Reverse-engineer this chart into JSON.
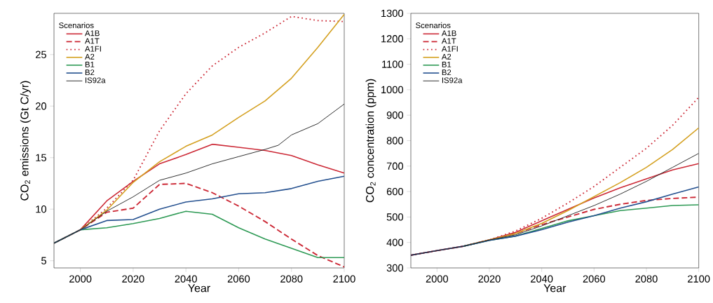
{
  "chart_data": [
    {
      "type": "line",
      "xlabel": "Year",
      "ylabel": "CO$_{2}$ emissions (Gt C/yr)",
      "legend_title": "Scenarios",
      "legend": "top left",
      "xlim": [
        1990,
        2100
      ],
      "ylim": [
        4.3,
        29
      ],
      "xticks": [
        2000,
        2020,
        2040,
        2060,
        2080,
        2100
      ],
      "yticks": [
        5,
        10,
        15,
        20,
        25
      ],
      "x": [
        1990,
        2000,
        2010,
        2020,
        2030,
        2040,
        2050,
        2060,
        2070,
        2080,
        2090,
        2100
      ],
      "series": [
        {
          "name": "A1B",
          "color": "#cc2936",
          "line_style": "solid",
          "values": [
            6.7,
            8.0,
            10.8,
            12.7,
            14.4,
            15.3,
            16.3,
            16.0,
            15.7,
            15.2,
            14.3,
            13.5
          ]
        },
        {
          "name": "A1T",
          "color": "#cc2936",
          "line_style": "dashed",
          "values": [
            6.7,
            8.0,
            9.7,
            10.1,
            12.4,
            12.5,
            11.6,
            10.3,
            8.8,
            7.1,
            5.5,
            4.4
          ]
        },
        {
          "name": "A1FI",
          "color": "#cc2936",
          "line_style": "dotted",
          "values": [
            6.7,
            8.0,
            10.1,
            12.8,
            17.6,
            21.2,
            23.9,
            25.7,
            27.1,
            28.7,
            28.3,
            28.2
          ]
        },
        {
          "name": "A2",
          "color": "#d4a020",
          "line_style": "solid",
          "values": [
            6.7,
            8.0,
            9.9,
            12.6,
            14.6,
            16.1,
            17.2,
            18.9,
            20.5,
            22.7,
            25.7,
            28.9
          ]
        },
        {
          "name": "B1",
          "color": "#2e9a55",
          "line_style": "solid",
          "values": [
            6.7,
            8.0,
            8.2,
            8.6,
            9.1,
            9.8,
            9.5,
            8.2,
            7.1,
            6.2,
            5.3,
            5.3
          ]
        },
        {
          "name": "B2",
          "color": "#24508f",
          "line_style": "solid",
          "values": [
            6.7,
            8.0,
            8.9,
            9.0,
            10.0,
            10.7,
            11.0,
            11.5,
            11.6,
            12.0,
            12.7,
            13.2
          ]
        },
        {
          "name": "IS92a",
          "color": "#222222",
          "line_style": "solid",
          "x": [
            1990,
            2000,
            2010,
            2020,
            2030,
            2040,
            2050,
            2060,
            2070,
            2075,
            2080,
            2090,
            2100
          ],
          "values": [
            6.7,
            8.0,
            9.8,
            11.2,
            12.8,
            13.5,
            14.4,
            15.1,
            15.8,
            16.2,
            17.2,
            18.3,
            20.2
          ]
        }
      ]
    },
    {
      "type": "line",
      "xlabel": "Year",
      "ylabel": "CO$_{2}$ concentration (ppm)",
      "legend_title": "Scenarios",
      "legend": "top left",
      "xlim": [
        1990,
        2100
      ],
      "ylim": [
        300,
        1300
      ],
      "xticks": [
        2000,
        2020,
        2040,
        2060,
        2080,
        2100
      ],
      "yticks": [
        300,
        400,
        500,
        600,
        700,
        800,
        900,
        1000,
        1100,
        1200,
        1300
      ],
      "x": [
        1990,
        2000,
        2010,
        2020,
        2030,
        2040,
        2050,
        2060,
        2070,
        2080,
        2090,
        2100
      ],
      "series": [
        {
          "name": "A1B",
          "color": "#cc2936",
          "line_style": "solid",
          "values": [
            350,
            368,
            385,
            410,
            440,
            485,
            530,
            575,
            615,
            650,
            685,
            710
          ]
        },
        {
          "name": "A1T",
          "color": "#cc2936",
          "line_style": "dashed",
          "values": [
            350,
            368,
            385,
            410,
            435,
            470,
            500,
            530,
            550,
            565,
            573,
            578
          ]
        },
        {
          "name": "A1FI",
          "color": "#cc2936",
          "line_style": "dotted",
          "values": [
            350,
            368,
            385,
            410,
            445,
            495,
            555,
            620,
            695,
            770,
            860,
            970
          ]
        },
        {
          "name": "A2",
          "color": "#d4a020",
          "line_style": "solid",
          "values": [
            null,
            null,
            385,
            410,
            435,
            475,
            525,
            580,
            635,
            695,
            765,
            850
          ]
        },
        {
          "name": "B1",
          "color": "#2e9a55",
          "line_style": "solid",
          "values": [
            null,
            null,
            385,
            408,
            425,
            455,
            485,
            505,
            525,
            535,
            545,
            548
          ]
        },
        {
          "name": "B2",
          "color": "#24508f",
          "line_style": "solid",
          "values": [
            350,
            368,
            385,
            408,
            425,
            450,
            480,
            505,
            535,
            560,
            590,
            618
          ]
        },
        {
          "name": "IS92a",
          "color": "#222222",
          "line_style": "solid",
          "values": [
            350,
            368,
            385,
            410,
            430,
            465,
            505,
            545,
            590,
            640,
            695,
            750
          ]
        }
      ]
    }
  ]
}
